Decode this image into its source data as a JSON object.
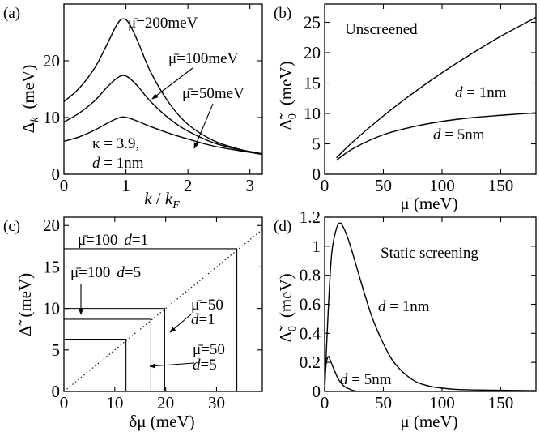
{
  "chart_data": [
    {
      "panel": "(a)",
      "type": "line",
      "xlabel": "k / k_F",
      "ylabel": "Δ_k (meV)",
      "xlim": [
        0,
        3.2
      ],
      "ylim": [
        0,
        30
      ],
      "xticks": [
        0,
        1,
        2,
        3
      ],
      "yticks": [
        0,
        10,
        20
      ],
      "series": [
        {
          "name": "μ̄=200meV",
          "x": [
            0,
            0.25,
            0.5,
            0.7,
            0.85,
            0.95,
            1.05,
            1.2,
            1.4,
            1.7,
            2.0,
            2.4,
            2.8,
            3.2
          ],
          "y": [
            12.8,
            15.2,
            18.8,
            23.0,
            26.3,
            27.4,
            26.6,
            23.2,
            18.0,
            12.5,
            8.8,
            6.0,
            4.5,
            3.6
          ]
        },
        {
          "name": "μ̄=100meV",
          "x": [
            0,
            0.25,
            0.5,
            0.7,
            0.85,
            0.95,
            1.05,
            1.2,
            1.4,
            1.7,
            2.0,
            2.4,
            2.8,
            3.2
          ],
          "y": [
            9.2,
            10.8,
            13.0,
            15.4,
            16.9,
            17.4,
            17.0,
            15.4,
            12.8,
            9.8,
            7.6,
            5.6,
            4.4,
            3.6
          ]
        },
        {
          "name": "μ̄=50meV",
          "x": [
            0,
            0.25,
            0.5,
            0.7,
            0.85,
            0.95,
            1.05,
            1.2,
            1.4,
            1.7,
            2.0,
            2.4,
            2.8,
            3.2
          ],
          "y": [
            5.8,
            6.6,
            7.8,
            9.0,
            9.8,
            10.1,
            9.9,
            9.3,
            8.4,
            7.2,
            6.2,
            5.0,
            4.2,
            3.5
          ]
        }
      ],
      "annotations": [
        {
          "text": "μ̄=200meV"
        },
        {
          "text": "μ̄=100meV"
        },
        {
          "text": "μ̄=50meV"
        },
        {
          "text": "κ = 3.9,"
        },
        {
          "text": "d = 1nm"
        }
      ]
    },
    {
      "panel": "(b)",
      "type": "line",
      "title": "Unscreened",
      "xlabel": "μ̄ (meV)",
      "ylabel": "Δ̃_0 (meV)",
      "xlim": [
        0,
        180
      ],
      "ylim": [
        0,
        28
      ],
      "xticks": [
        0,
        50,
        100,
        150
      ],
      "yticks": [
        0,
        5,
        10,
        15,
        20,
        25
      ],
      "series": [
        {
          "name": "d = 1nm",
          "x": [
            10,
            25,
            50,
            75,
            100,
            125,
            150,
            180
          ],
          "y": [
            2.7,
            5.5,
            9.6,
            13.3,
            16.7,
            19.8,
            22.7,
            25.8
          ]
        },
        {
          "name": "d = 5nm",
          "x": [
            10,
            25,
            50,
            75,
            100,
            125,
            150,
            180
          ],
          "y": [
            2.3,
            4.3,
            6.5,
            7.8,
            8.7,
            9.3,
            9.7,
            10.1
          ]
        }
      ]
    },
    {
      "panel": "(c)",
      "type": "line",
      "xlabel": "δμ (meV)",
      "ylabel": "Δ̃ (meV)",
      "xlim": [
        0,
        39
      ],
      "ylim": [
        0,
        21
      ],
      "xticks": [
        0,
        10,
        20,
        30
      ],
      "yticks": [
        0,
        5,
        10,
        15,
        20
      ],
      "series": [
        {
          "name": "μ̄=100 d=1",
          "delta": 17.2,
          "delta_mu": 34
        },
        {
          "name": "μ̄=100 d=5",
          "delta": 8.7,
          "delta_mu": 17.1
        },
        {
          "name": "μ̄=50 d=1",
          "delta": 10.0,
          "delta_mu": 19.8
        },
        {
          "name": "μ̄=50 d=5",
          "delta": 6.3,
          "delta_mu": 12.2
        }
      ],
      "reference_line": {
        "slope": 0.5,
        "style": "dotted"
      },
      "annotations": [
        {
          "text": "μ̄=100  d=1"
        },
        {
          "text": "μ̄=100  d=5"
        },
        {
          "text": "μ̄=50"
        },
        {
          "text": "d=1"
        },
        {
          "text": "μ̄=50"
        },
        {
          "text": "d=5"
        }
      ]
    },
    {
      "panel": "(d)",
      "type": "line",
      "title": "Static screening",
      "xlabel": "μ̄ (meV)",
      "ylabel": "Δ̃_0 (meV)",
      "xlim": [
        0,
        180
      ],
      "ylim": [
        0,
        1.2
      ],
      "xticks": [
        0,
        50,
        100,
        150
      ],
      "yticks": [
        0,
        0.2,
        0.4,
        0.6,
        0.8,
        1.0,
        1.2
      ],
      "series": [
        {
          "name": "d = 1nm",
          "x": [
            0,
            3,
            6,
            10,
            13,
            16,
            20,
            25,
            30,
            40,
            50,
            60,
            75,
            90,
            110,
            130,
            150,
            180
          ],
          "y": [
            0.0,
            0.55,
            0.95,
            1.12,
            1.16,
            1.13,
            1.05,
            0.92,
            0.78,
            0.52,
            0.33,
            0.19,
            0.08,
            0.035,
            0.015,
            0.01,
            0.008,
            0.005
          ]
        },
        {
          "name": "d = 5nm",
          "x": [
            0,
            1,
            3,
            5,
            8,
            12,
            16,
            20,
            25,
            30
          ],
          "y": [
            0.0,
            0.17,
            0.24,
            0.21,
            0.15,
            0.08,
            0.04,
            0.02,
            0.005,
            0.0
          ]
        }
      ]
    }
  ],
  "labels": {
    "a": {
      "panel": "(a)",
      "ylabel_main": "Δ",
      "ylabel_sub": "k",
      "ylabel_unit": "(meV)",
      "xlabel_k": "k",
      "xlabel_sep": " / ",
      "xlabel_kF": "k",
      "xlabel_F": "F",
      "xtick": [
        "0",
        "1",
        "2",
        "3"
      ],
      "ytick": [
        "0",
        "10",
        "20"
      ],
      "ann1": "μ̄=200meV",
      "ann2": "μ̄=100meV",
      "ann3": "μ̄=50meV",
      "kappa": "κ = 3.9,",
      "d_italic": "d",
      "d_rest": " = 1nm"
    },
    "b": {
      "panel": "(b)",
      "title": "Unscreened",
      "ylabel_main": "Δ̃",
      "ylabel_sub": "0",
      "ylabel_unit": "(meV)",
      "xlabel": "μ̄  (meV)",
      "xtick": [
        "0",
        "50",
        "100",
        "150"
      ],
      "ytick": [
        "0",
        "5",
        "10",
        "15",
        "20",
        "25"
      ],
      "lbl1_d": "d",
      "lbl1_rest": " = 1nm",
      "lbl2_d": "d",
      "lbl2_rest": " = 5nm"
    },
    "c": {
      "panel": "(c)",
      "ylabel_main": "Δ̃",
      "ylabel_unit": "(meV)",
      "xlabel": "δμ  (meV)",
      "xtick": [
        "0",
        "10",
        "20",
        "30"
      ],
      "ytick": [
        "0",
        "5",
        "10",
        "15",
        "20"
      ],
      "a1_mu": "μ̄=100",
      "a1_d": "d",
      "a1_val": "=1",
      "a2_mu": "μ̄=100",
      "a2_d": "d",
      "a2_val": "=5",
      "a3_mu": "μ̄=50",
      "a3_d": "d",
      "a3_val": "=1",
      "a4_mu": "μ̄=50",
      "a4_d": "d",
      "a4_val": "=5"
    },
    "d": {
      "panel": "(d)",
      "title": "Static screening",
      "ylabel_main": "Δ̃",
      "ylabel_sub": "0",
      "ylabel_unit": "(meV)",
      "xlabel": "μ̄  (meV)",
      "xtick": [
        "0",
        "50",
        "100",
        "150"
      ],
      "ytick": [
        "0",
        "0.2",
        "0.4",
        "0.6",
        "0.8",
        "1",
        "1.2"
      ],
      "lbl1_d": "d",
      "lbl1_rest": " = 1nm",
      "lbl2_d": "d",
      "lbl2_rest": " = 5nm"
    }
  }
}
